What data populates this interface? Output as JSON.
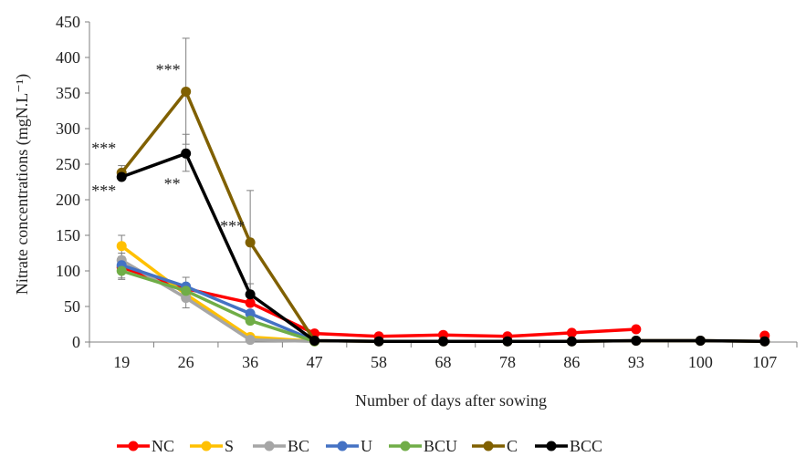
{
  "chart_data": {
    "type": "line",
    "title": "",
    "xlabel": "Number of days after sowing",
    "ylabel": "Nitrate concentrations (mgN.L⁻¹)",
    "categories": [
      "19",
      "26",
      "36",
      "47",
      "58",
      "68",
      "78",
      "86",
      "93",
      "100",
      "107"
    ],
    "ylim": [
      0,
      450
    ],
    "yticks": [
      0,
      50,
      100,
      150,
      200,
      250,
      300,
      350,
      400,
      450
    ],
    "grid": false,
    "legend_position": "bottom",
    "series": [
      {
        "name": "NC",
        "color": "#ff0000",
        "values": [
          105,
          75,
          55,
          12,
          8,
          10,
          8,
          13,
          18,
          null,
          9
        ]
      },
      {
        "name": "S",
        "color": "#ffc000",
        "values": [
          135,
          67,
          7,
          1,
          null,
          null,
          null,
          null,
          null,
          null,
          null
        ]
      },
      {
        "name": "BC",
        "color": "#a6a6a6",
        "values": [
          115,
          62,
          3,
          1,
          null,
          null,
          null,
          null,
          null,
          null,
          null
        ]
      },
      {
        "name": "U",
        "color": "#4472c4",
        "values": [
          108,
          78,
          40,
          2,
          null,
          null,
          null,
          null,
          null,
          null,
          null
        ]
      },
      {
        "name": "BCU",
        "color": "#70ad47",
        "values": [
          100,
          72,
          30,
          1,
          null,
          null,
          null,
          null,
          null,
          null,
          null
        ]
      },
      {
        "name": "C",
        "color": "#806000",
        "values": [
          238,
          352,
          140,
          2,
          1,
          1,
          1,
          1,
          2,
          2,
          1
        ]
      },
      {
        "name": "BCC",
        "color": "#000000",
        "values": [
          232,
          265,
          67,
          2,
          1,
          1,
          1,
          1,
          2,
          2,
          1
        ]
      }
    ],
    "error_bars": [
      {
        "series": "C",
        "x": "26",
        "low": 278,
        "high": 427
      },
      {
        "series": "C",
        "x": "36",
        "low": 67,
        "high": 213
      },
      {
        "series": "C",
        "x": "19",
        "low": 228,
        "high": 248
      },
      {
        "series": "BCC",
        "x": "26",
        "low": 240,
        "high": 292
      },
      {
        "series": "BCC",
        "x": "36",
        "low": 54,
        "high": 82
      },
      {
        "series": "S",
        "x": "19",
        "low": 120,
        "high": 150
      },
      {
        "series": "BC",
        "x": "19",
        "low": 88,
        "high": 125
      },
      {
        "series": "U",
        "x": "26",
        "low": 48,
        "high": 91
      },
      {
        "series": "BC",
        "x": "36",
        "low": 0,
        "high": 8
      },
      {
        "series": "BCU",
        "x": "19",
        "low": 90,
        "high": 110
      },
      {
        "series": "BCU",
        "x": "26",
        "low": 62,
        "high": 82
      }
    ],
    "annotations": [
      {
        "text": "***",
        "x": "19",
        "y": 265
      },
      {
        "text": "***",
        "x": "19",
        "y": 205
      },
      {
        "text": "***",
        "x": "26",
        "y": 375
      },
      {
        "text": "**",
        "x": "26",
        "y": 215
      },
      {
        "text": "***",
        "x": "36",
        "y": 155
      }
    ]
  }
}
